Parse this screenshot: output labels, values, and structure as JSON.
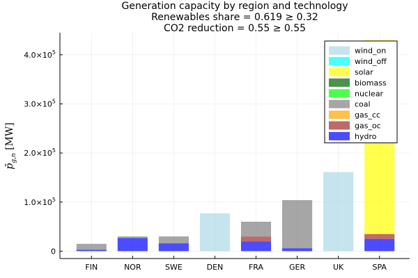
{
  "chart_data": {
    "type": "bar",
    "stacked": true,
    "title_lines": [
      "Generation capacity by region and technology",
      "Renewables share = 0.619 ≥ 0.32",
      "CO2 reduction = 0.55 ≥ 0.55"
    ],
    "ylabel": "p̄_{g,n} [MW]",
    "ylim": [
      -15000,
      445000
    ],
    "yticks": [
      {
        "value": 0,
        "label": "0",
        "exp": ""
      },
      {
        "value": 100000,
        "label": "1.0×10",
        "exp": "5"
      },
      {
        "value": 200000,
        "label": "2.0×10",
        "exp": "5"
      },
      {
        "value": 300000,
        "label": "3.0×10",
        "exp": "5"
      },
      {
        "value": 400000,
        "label": "4.0×10",
        "exp": "5"
      }
    ],
    "categories": [
      "FIN",
      "NOR",
      "SWE",
      "DEN",
      "FRA",
      "GER",
      "UK",
      "SPA"
    ],
    "grid": true,
    "legend_position": "top-right",
    "series": [
      {
        "name": "wind_on",
        "color": "#add8e6",
        "values": [
          0,
          0,
          0,
          77000,
          0,
          0,
          161000,
          0
        ]
      },
      {
        "name": "wind_off",
        "color": "#00ffff",
        "values": [
          0,
          0,
          0,
          0,
          0,
          0,
          0,
          0
        ]
      },
      {
        "name": "solar",
        "color": "#ffff00",
        "values": [
          0,
          0,
          0,
          0,
          0,
          0,
          0,
          395000
        ]
      },
      {
        "name": "biomass",
        "color": "#006400",
        "values": [
          0,
          0,
          0,
          0,
          0,
          0,
          0,
          0
        ]
      },
      {
        "name": "nuclear",
        "color": "#00ff00",
        "values": [
          0,
          0,
          0,
          0,
          0,
          0,
          0,
          0
        ]
      },
      {
        "name": "coal",
        "color": "#808080",
        "values": [
          12000,
          3000,
          14000,
          0,
          30000,
          98000,
          0,
          0
        ]
      },
      {
        "name": "gas_cc",
        "color": "#ffa500",
        "values": [
          0,
          0,
          0,
          0,
          0,
          0,
          0,
          0
        ]
      },
      {
        "name": "gas_oc",
        "color": "#a52a2a",
        "values": [
          0,
          0,
          0,
          0,
          10000,
          0,
          0,
          10000
        ]
      },
      {
        "name": "hydro",
        "color": "#0000ff",
        "values": [
          3000,
          27000,
          16000,
          0,
          20000,
          6000,
          0,
          25000
        ]
      }
    ],
    "bar_alpha": 0.7
  }
}
